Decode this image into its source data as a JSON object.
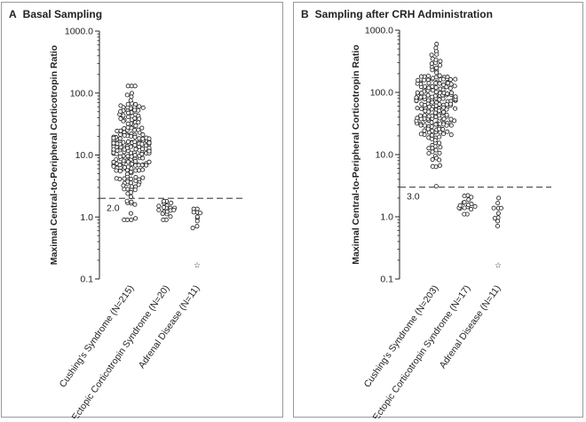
{
  "chart_data": [
    {
      "type": "scatter",
      "panel_letter": "A",
      "title": "Basal Sampling",
      "ylabel": "Maximal Central-to-Peripheral Corticotropin Ratio",
      "yscale": "log",
      "ylim": [
        0.1,
        1000
      ],
      "yticks": [
        "0.1",
        "1.0",
        "10.0",
        "100.0",
        "1000.0"
      ],
      "categories": [
        "Cushing's Syndrome (N=215)",
        "Ectopic Corticotropin Syndrome (N=20)",
        "Adrenal Disease (N=11)"
      ],
      "threshold": {
        "value": 2.0,
        "label": "2.0"
      },
      "series": [
        {
          "n": 215,
          "min": 0.9,
          "max": 130,
          "median": 13,
          "spread": 0.42
        },
        {
          "n": 20,
          "min": 0.9,
          "max": 1.8,
          "median": 1.3,
          "spread": 0.09
        },
        {
          "n": 11,
          "min": 0.17,
          "max": 1.35,
          "median": 1.1,
          "spread": 0.08
        }
      ],
      "star_point": {
        "category": 2,
        "value": 0.17
      }
    },
    {
      "type": "scatter",
      "panel_letter": "B",
      "title": "Sampling after CRH Administration",
      "ylabel": "Maximal Central-to-Peripheral Corticotropin Ratio",
      "yscale": "log",
      "ylim": [
        0.1,
        1000
      ],
      "yticks": [
        "0.1",
        "1.0",
        "10.0",
        "100.0",
        "1000.0"
      ],
      "categories": [
        "Cushing's Syndrome (N=203)",
        "Ectopic Corticotropin Syndrome (N=17)",
        "Adrenal Disease (N=11)"
      ],
      "threshold": {
        "value": 3.0,
        "label": "3.0"
      },
      "series": [
        {
          "n": 203,
          "min": 3.1,
          "max": 600,
          "median": 60,
          "spread": 0.4
        },
        {
          "n": 17,
          "min": 1.1,
          "max": 2.2,
          "median": 1.4,
          "spread": 0.09
        },
        {
          "n": 11,
          "min": 0.17,
          "max": 2.0,
          "median": 1.1,
          "spread": 0.09
        }
      ],
      "star_point": {
        "category": 2,
        "value": 0.17
      }
    }
  ]
}
